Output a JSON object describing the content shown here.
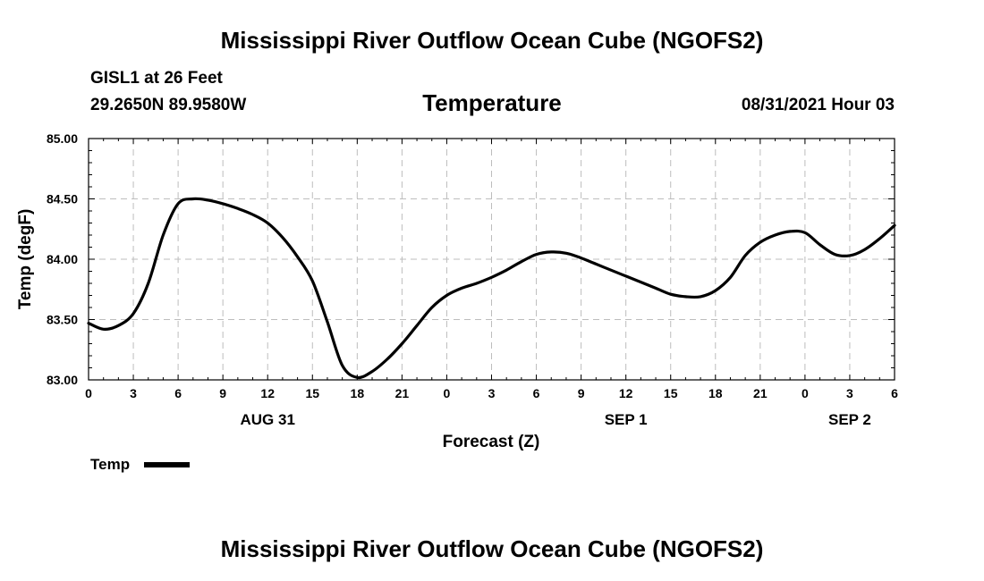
{
  "header": {
    "title": "Mississippi River Outflow Ocean Cube (NGOFS2)",
    "station": "GISL1 at 26 Feet",
    "coords": "29.2650N  89.9580W",
    "parameter": "Temperature",
    "datetime": "08/31/2021 Hour 03"
  },
  "footer": {
    "title": "Mississippi River Outflow Ocean Cube (NGOFS2)"
  },
  "legend": {
    "label": "Temp"
  },
  "colors": {
    "line": "#000000",
    "grid": "#bdbdbd"
  },
  "chart_data": {
    "type": "line",
    "title": "Temperature",
    "xlabel": "Forecast (Z)",
    "ylabel": "Temp (degF)",
    "ylim": [
      83.0,
      85.0
    ],
    "xlim": [
      0,
      54
    ],
    "grid": true,
    "legend_position": "bottom-left",
    "y_ticks": [
      "83.00",
      "83.50",
      "84.00",
      "84.50",
      "85.00"
    ],
    "y_tick_values": [
      83.0,
      83.5,
      84.0,
      84.5,
      85.0
    ],
    "x_tick_values": [
      0,
      3,
      6,
      9,
      12,
      15,
      18,
      21,
      24,
      27,
      30,
      33,
      36,
      39,
      42,
      45,
      48,
      51,
      54
    ],
    "x_tick_labels": [
      "0",
      "3",
      "6",
      "9",
      "12",
      "15",
      "18",
      "21",
      "0",
      "3",
      "6",
      "9",
      "12",
      "15",
      "18",
      "21",
      "0",
      "3",
      "6"
    ],
    "date_labels": [
      {
        "label": "AUG 31",
        "x": 12
      },
      {
        "label": "SEP 1",
        "x": 36
      },
      {
        "label": "SEP 2",
        "x": 51
      }
    ],
    "series": [
      {
        "name": "Temp",
        "x": [
          0,
          1,
          2,
          3,
          4,
          5,
          6,
          7,
          8,
          9,
          10,
          11,
          12,
          13,
          14,
          15,
          16,
          17,
          18,
          19,
          20,
          21,
          22,
          23,
          24,
          25,
          26,
          27,
          28,
          29,
          30,
          31,
          32,
          33,
          34,
          35,
          36,
          37,
          38,
          39,
          40,
          41,
          42,
          43,
          44,
          45,
          46,
          47,
          48,
          49,
          50,
          51,
          52,
          53,
          54
        ],
        "values": [
          83.47,
          83.42,
          83.45,
          83.55,
          83.8,
          84.2,
          84.46,
          84.5,
          84.49,
          84.46,
          84.42,
          84.37,
          84.3,
          84.18,
          84.02,
          83.82,
          83.48,
          83.12,
          83.02,
          83.07,
          83.17,
          83.3,
          83.45,
          83.6,
          83.7,
          83.76,
          83.8,
          83.85,
          83.91,
          83.98,
          84.04,
          84.06,
          84.05,
          84.01,
          83.96,
          83.91,
          83.86,
          83.81,
          83.76,
          83.71,
          83.69,
          83.69,
          83.74,
          83.85,
          84.03,
          84.14,
          84.2,
          84.23,
          84.22,
          84.12,
          84.04,
          84.03,
          84.08,
          84.17,
          84.28
        ]
      }
    ]
  }
}
